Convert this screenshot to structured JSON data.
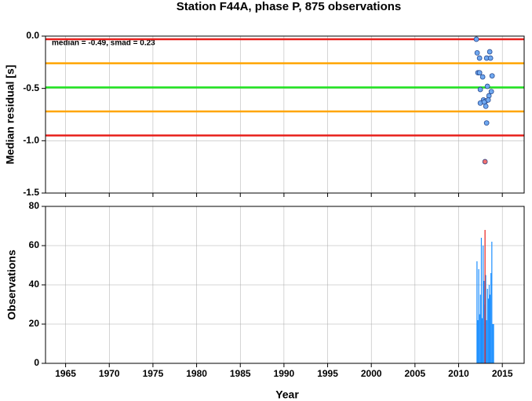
{
  "chart_data": [
    {
      "type": "scatter",
      "title": "Station F44A, phase P, 875 observations",
      "ylabel": "Median residual [s]",
      "annotation": "median = -0.49, smad = 0.23",
      "xlim": [
        1962.7,
        2017.5
      ],
      "xticks": [
        1965,
        1970,
        1975,
        1980,
        1985,
        1990,
        1995,
        2000,
        2005,
        2010,
        2015
      ],
      "ylim": [
        -1.5,
        0
      ],
      "yticks": [
        {
          "value": 0,
          "label": "0.0"
        },
        {
          "value": -0.5,
          "label": "-0.5"
        },
        {
          "value": -1,
          "label": "-1.0"
        },
        {
          "value": -1.5,
          "label": "-1.5"
        }
      ],
      "grid": true,
      "hlines": [
        {
          "value": -0.03,
          "color": "#e8201c"
        },
        {
          "value": -0.26,
          "color": "#ffa500"
        },
        {
          "value": -0.49,
          "color": "#22e622"
        },
        {
          "value": -0.72,
          "color": "#ffa500"
        },
        {
          "value": -0.95,
          "color": "#e8201c"
        }
      ],
      "x": [
        2012.03,
        2012.12,
        2012.39,
        2013.56,
        2013.2,
        2013.65,
        2012.21,
        2012.39,
        2012.75,
        2013.83,
        2013.29,
        2012.48,
        2013.74,
        2013.47,
        2012.84,
        2012.48,
        2013.11,
        2012.93,
        2013.38,
        2013.11,
        2013.2,
        2013.02
      ],
      "values": [
        -0.03,
        -0.16,
        -0.21,
        -0.15,
        -0.21,
        -0.21,
        -0.35,
        -0.35,
        -0.39,
        -0.38,
        -0.48,
        -0.51,
        -0.53,
        -0.57,
        -0.61,
        -0.64,
        -0.62,
        -0.63,
        -0.61,
        -0.67,
        -0.83,
        -1.2
      ],
      "colors": [
        "#6fa8f0",
        "#6fa8f0",
        "#6fa8f0",
        "#6fa8f0",
        "#6fa8f0",
        "#6fa8f0",
        "#6fa8f0",
        "#6fa8f0",
        "#6fa8f0",
        "#6fa8f0",
        "#6fa8f0",
        "#6fa8f0",
        "#6fa8f0",
        "#6fa8f0",
        "#6fa8f0",
        "#6fa8f0",
        "#6fa8f0",
        "#6fa8f0",
        "#6fa8f0",
        "#6fa8f0",
        "#6fa8f0",
        "#f07070"
      ]
    },
    {
      "type": "bar",
      "xlabel": "Year",
      "ylabel": "Observations",
      "xlim": [
        1962.7,
        2017.5
      ],
      "xticks": [
        1965,
        1970,
        1975,
        1980,
        1985,
        1990,
        1995,
        2000,
        2005,
        2010,
        2015
      ],
      "ylim": [
        0,
        80
      ],
      "yticks": [
        0,
        20,
        40,
        60,
        80
      ],
      "grid": true,
      "color": "#1e90ff",
      "x": [
        2012.1,
        2012.2,
        2012.3,
        2012.4,
        2012.5,
        2012.6,
        2012.7,
        2012.8,
        2012.9,
        2013.0,
        2013.1,
        2013.2,
        2013.3,
        2013.4,
        2013.5,
        2013.6,
        2013.7,
        2013.8,
        2013.9,
        2014.0
      ],
      "values": [
        52,
        22,
        48,
        25,
        35,
        64,
        23,
        60,
        42,
        30,
        45,
        22,
        38,
        33,
        40,
        35,
        46,
        62,
        20,
        20
      ],
      "highlight": {
        "x": 2013.02,
        "value": 68,
        "color": "#e8201c"
      }
    }
  ]
}
